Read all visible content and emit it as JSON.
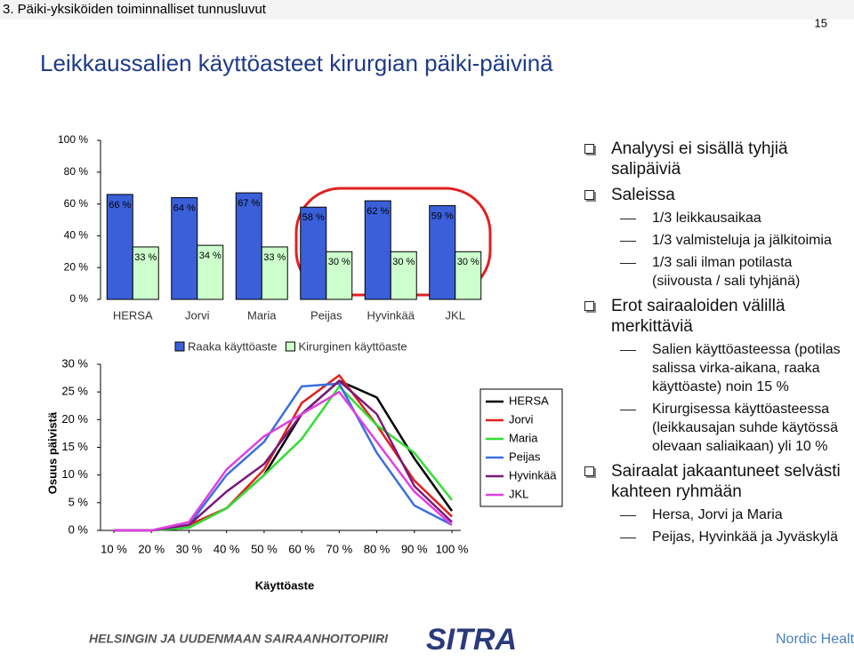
{
  "header": {
    "section": "3. Päiki-yksiköiden toiminnalliset tunnusluvut",
    "page": "15",
    "title": "Leikkaussalien käyttöasteet kirurgian päiki-päivinä"
  },
  "chart_data": [
    {
      "type": "bar",
      "categories": [
        "HERSA",
        "Jorvi",
        "Maria",
        "Peijas",
        "Hyvinkää",
        "JKL"
      ],
      "series": [
        {
          "name": "Raaka käyttöaste",
          "color": "#3a5fd9",
          "values": [
            66,
            64,
            67,
            58,
            62,
            59
          ],
          "value_labels": [
            "66 %",
            "64 %",
            "67 %",
            "58 %",
            "62 %",
            "59 %"
          ]
        },
        {
          "name": "Kirurginen käyttöaste",
          "color": "#ccffcc",
          "values": [
            33,
            34,
            33,
            30,
            30,
            30
          ],
          "value_labels": [
            "33 %",
            "34 %",
            "33 %",
            "30 %",
            "30 %",
            "30 %"
          ]
        }
      ],
      "ylim": [
        0,
        100
      ],
      "yticks": [
        {
          "value": 0,
          "label": "0 %"
        },
        {
          "value": 20,
          "label": "20 %"
        },
        {
          "value": 40,
          "label": "40 %"
        },
        {
          "value": 60,
          "label": "60 %"
        },
        {
          "value": 80,
          "label": "80 %"
        },
        {
          "value": 100,
          "label": "100 %"
        }
      ]
    },
    {
      "type": "line",
      "x_label": "Käyttöaste",
      "y_label": "Osuus päivistä",
      "x": [
        10,
        20,
        30,
        40,
        50,
        60,
        70,
        80,
        90,
        100
      ],
      "series": [
        {
          "name": "HERSA",
          "color": "#000000",
          "values": [
            0,
            0,
            0.5,
            4,
            10,
            21,
            27,
            24,
            13,
            3.5
          ]
        },
        {
          "name": "Jorvi",
          "color": "#e0201c",
          "values": [
            0,
            0,
            1,
            4,
            11,
            23,
            28,
            19,
            9,
            2.5
          ]
        },
        {
          "name": "Maria",
          "color": "#33dd33",
          "values": [
            0,
            0,
            0.5,
            4,
            10,
            16.5,
            26,
            19,
            14,
            5.5
          ]
        },
        {
          "name": "Peijas",
          "color": "#3a6fe0",
          "values": [
            0,
            0,
            1,
            10,
            16,
            26,
            26.5,
            14,
            4.5,
            1
          ]
        },
        {
          "name": "Hyvinkää",
          "color": "#7a1a7a",
          "values": [
            0,
            0,
            1,
            7,
            12,
            21,
            27,
            21,
            8,
            1.5
          ]
        },
        {
          "name": "JKL",
          "color": "#e040e0",
          "values": [
            0,
            0,
            1.5,
            11,
            17,
            21,
            25,
            16,
            7,
            1
          ]
        }
      ],
      "xlim": [
        10,
        100
      ],
      "xticks": [
        {
          "value": 10,
          "label": "10 %"
        },
        {
          "value": 20,
          "label": "20 %"
        },
        {
          "value": 30,
          "label": "30 %"
        },
        {
          "value": 40,
          "label": "40 %"
        },
        {
          "value": 50,
          "label": "50 %"
        },
        {
          "value": 60,
          "label": "60 %"
        },
        {
          "value": 70,
          "label": "70 %"
        },
        {
          "value": 80,
          "label": "80 %"
        },
        {
          "value": 90,
          "label": "90 %"
        },
        {
          "value": 100,
          "label": "100 %"
        }
      ],
      "ylim": [
        0,
        30
      ],
      "yticks": [
        {
          "value": 0,
          "label": "0 %"
        },
        {
          "value": 5,
          "label": "5 %"
        },
        {
          "value": 10,
          "label": "10 %"
        },
        {
          "value": 15,
          "label": "15 %"
        },
        {
          "value": 20,
          "label": "20 %"
        },
        {
          "value": 25,
          "label": "25 %"
        },
        {
          "value": 30,
          "label": "30 %"
        }
      ]
    }
  ],
  "bullets": [
    {
      "level": 1,
      "text": "Analyysi ei sisällä tyhjiä salipäiviä"
    },
    {
      "level": 1,
      "text": "Saleissa"
    },
    {
      "level": 2,
      "text": "1/3 leikkausaikaa"
    },
    {
      "level": 2,
      "text": "1/3 valmisteluja ja jälkitoimia"
    },
    {
      "level": 2,
      "text": "1/3 sali ilman potilasta (siivousta / sali tyhjänä)"
    },
    {
      "level": 1,
      "text": "Erot sairaaloiden välillä merkittäviä"
    },
    {
      "level": 2,
      "text": "Salien käyttöasteessa (potilas salissa virka-aikana, raaka käyttöaste) noin 15 %"
    },
    {
      "level": 2,
      "text": "Kirurgisessa käyttöasteessa (leikkausajan suhde käytössä olevaan saliaikaan) yli 10 %"
    },
    {
      "level": 1,
      "text": "Sairaalat jakaantuneet selvästi kahteen ryhmään"
    },
    {
      "level": 2,
      "text": "Hersa, Jorvi ja Maria"
    },
    {
      "level": 2,
      "text": "Peijas, Hyvinkää ja Jyväskylä"
    }
  ],
  "footer": {
    "left": "HELSINGIN JA UUDENMAAN SAIRAANHOITOPIIRI",
    "center": "SITRA",
    "right": "Nordic Healthcare Group"
  }
}
